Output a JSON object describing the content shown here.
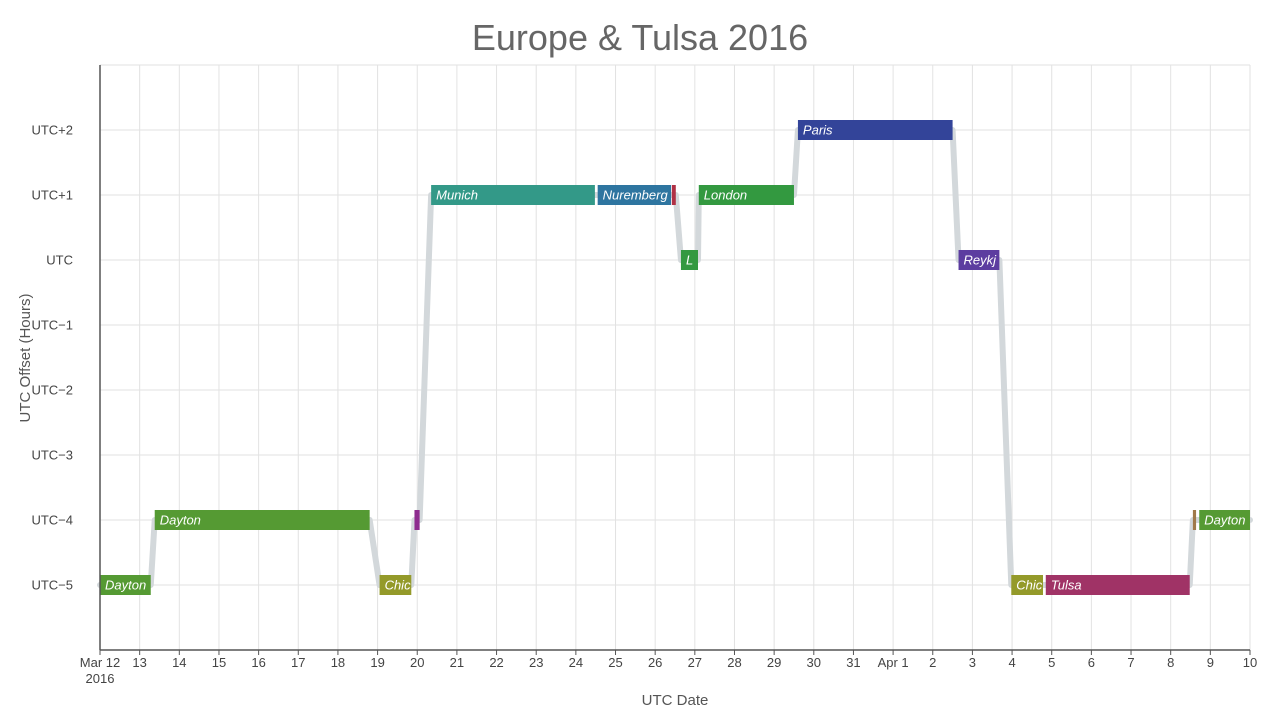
{
  "chart_data": {
    "type": "line",
    "title": "Europe & Tulsa 2016",
    "xlabel": "UTC Date",
    "ylabel": "UTC Offset (Hours)",
    "x_ticks": [
      {
        "day": 0,
        "label": "Mar 12",
        "sub": "2016"
      },
      {
        "day": 1,
        "label": "13"
      },
      {
        "day": 2,
        "label": "14"
      },
      {
        "day": 3,
        "label": "15"
      },
      {
        "day": 4,
        "label": "16"
      },
      {
        "day": 5,
        "label": "17"
      },
      {
        "day": 6,
        "label": "18"
      },
      {
        "day": 7,
        "label": "19"
      },
      {
        "day": 8,
        "label": "20"
      },
      {
        "day": 9,
        "label": "21"
      },
      {
        "day": 10,
        "label": "22"
      },
      {
        "day": 11,
        "label": "23"
      },
      {
        "day": 12,
        "label": "24"
      },
      {
        "day": 13,
        "label": "25"
      },
      {
        "day": 14,
        "label": "26"
      },
      {
        "day": 15,
        "label": "27"
      },
      {
        "day": 16,
        "label": "28"
      },
      {
        "day": 17,
        "label": "29"
      },
      {
        "day": 18,
        "label": "30"
      },
      {
        "day": 19,
        "label": "31"
      },
      {
        "day": 20,
        "label": "Apr 1"
      },
      {
        "day": 21,
        "label": "2"
      },
      {
        "day": 22,
        "label": "3"
      },
      {
        "day": 23,
        "label": "4"
      },
      {
        "day": 24,
        "label": "5"
      },
      {
        "day": 25,
        "label": "6"
      },
      {
        "day": 26,
        "label": "7"
      },
      {
        "day": 27,
        "label": "8"
      },
      {
        "day": 28,
        "label": "9"
      },
      {
        "day": 29,
        "label": "10"
      }
    ],
    "y_ticks": [
      {
        "value": 2,
        "label": "UTC+2"
      },
      {
        "value": 1,
        "label": "UTC+1"
      },
      {
        "value": 0,
        "label": "UTC"
      },
      {
        "value": -1,
        "label": "UTC−1"
      },
      {
        "value": -2,
        "label": "UTC−2"
      },
      {
        "value": -3,
        "label": "UTC−3"
      },
      {
        "value": -4,
        "label": "UTC−4"
      },
      {
        "value": -5,
        "label": "UTC−5"
      }
    ],
    "xlim_days": [
      0,
      29
    ],
    "ylim": [
      -6,
      3
    ],
    "grid": true,
    "connector_color": "#d3d8db",
    "segments": [
      {
        "label": "Dayton",
        "start": 0.0,
        "end": 1.28,
        "offset": -5,
        "color": "#559a33"
      },
      {
        "label": "Dayton",
        "start": 1.38,
        "end": 6.8,
        "offset": -4,
        "color": "#559a33"
      },
      {
        "label": "Chic",
        "start": 7.05,
        "end": 7.85,
        "offset": -5,
        "color": "#949a2a"
      },
      {
        "label": "",
        "start": 7.93,
        "end": 8.06,
        "offset": -4,
        "color": "#8e2d8f"
      },
      {
        "label": "Munich",
        "start": 8.35,
        "end": 12.48,
        "offset": 1,
        "color": "#339988"
      },
      {
        "label": "Nuremberg",
        "start": 12.55,
        "end": 14.4,
        "offset": 1,
        "color": "#2e75a0"
      },
      {
        "label": "",
        "start": 14.42,
        "end": 14.52,
        "offset": 1,
        "color": "#b03045"
      },
      {
        "label": "L",
        "start": 14.65,
        "end": 15.08,
        "offset": 0,
        "color": "#339940"
      },
      {
        "label": "London",
        "start": 15.1,
        "end": 17.5,
        "offset": 1,
        "color": "#339940"
      },
      {
        "label": "Paris",
        "start": 17.6,
        "end": 21.5,
        "offset": 2,
        "color": "#334499"
      },
      {
        "label": "Reykj",
        "start": 21.65,
        "end": 22.68,
        "offset": 0,
        "color": "#5c3da0"
      },
      {
        "label": "Chic",
        "start": 22.98,
        "end": 23.78,
        "offset": -5,
        "color": "#949a2a"
      },
      {
        "label": "Tulsa",
        "start": 23.85,
        "end": 27.48,
        "offset": -5,
        "color": "#a03366"
      },
      {
        "label": "",
        "start": 27.56,
        "end": 27.64,
        "offset": -4,
        "color": "#a07a4a"
      },
      {
        "label": "Dayton",
        "start": 27.72,
        "end": 29.0,
        "offset": -4,
        "color": "#559a33"
      }
    ]
  }
}
